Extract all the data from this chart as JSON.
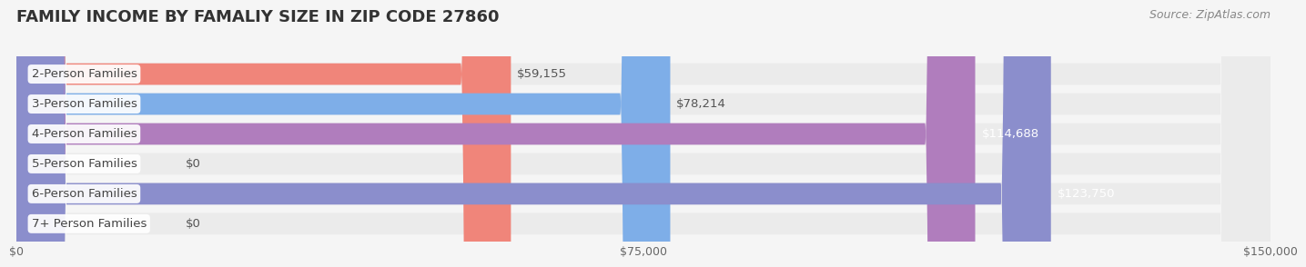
{
  "title": "FAMILY INCOME BY FAMALIY SIZE IN ZIP CODE 27860",
  "source": "Source: ZipAtlas.com",
  "categories": [
    "2-Person Families",
    "3-Person Families",
    "4-Person Families",
    "5-Person Families",
    "6-Person Families",
    "7+ Person Families"
  ],
  "values": [
    59155,
    78214,
    114688,
    0,
    123750,
    0
  ],
  "bar_colors": [
    "#f0857a",
    "#7eaee8",
    "#b07dbd",
    "#5ec9c0",
    "#8b8ecc",
    "#f4a8c0"
  ],
  "value_labels": [
    "$59,155",
    "$78,214",
    "$114,688",
    "$0",
    "$123,750",
    "$0"
  ],
  "xlim": [
    0,
    150000
  ],
  "xticks": [
    0,
    75000,
    150000
  ],
  "xticklabels": [
    "$0",
    "$75,000",
    "$150,000"
  ],
  "background_color": "#f5f5f5",
  "bar_bg_color": "#ebebeb",
  "title_fontsize": 13,
  "label_fontsize": 9.5,
  "source_fontsize": 9,
  "tick_fontsize": 9
}
